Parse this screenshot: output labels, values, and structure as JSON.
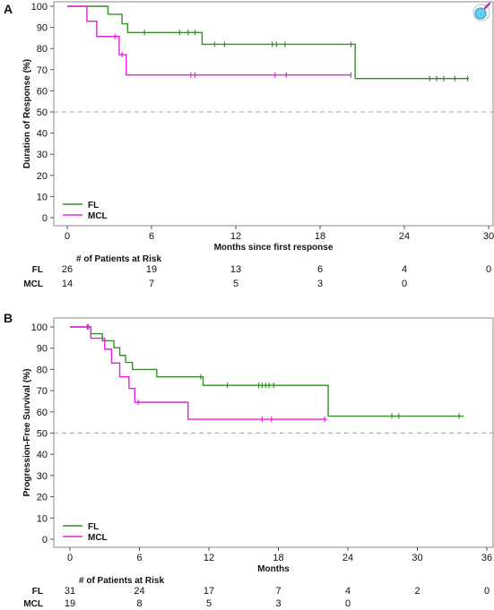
{
  "chart_data": [
    {
      "panel": "A",
      "type": "line",
      "xlabel": "Months since first response",
      "ylabel": "Duration of Response (%)",
      "xlim": [
        0,
        30
      ],
      "ylim": [
        0,
        100
      ],
      "xticks": [
        0,
        6,
        12,
        18,
        24,
        30
      ],
      "yticks": [
        0,
        10,
        20,
        30,
        40,
        50,
        60,
        70,
        80,
        90,
        100
      ],
      "reference_line_y": 50,
      "legend_position": "bottom-left",
      "series": [
        {
          "name": "FL",
          "color": "#3a8a2e",
          "steps": [
            [
              0,
              100
            ],
            [
              2.9,
              96.2
            ],
            [
              3.9,
              91.7
            ],
            [
              4.3,
              87.6
            ],
            [
              9.6,
              82.0
            ],
            [
              20.5,
              65.8
            ],
            [
              28.6,
              65.8
            ]
          ],
          "censored": [
            [
              5.5,
              87.6
            ],
            [
              8.0,
              87.6
            ],
            [
              8.6,
              87.6
            ],
            [
              9.1,
              87.6
            ],
            [
              10.5,
              82.0
            ],
            [
              11.2,
              82.0
            ],
            [
              14.6,
              82.0
            ],
            [
              14.9,
              82.0
            ],
            [
              15.5,
              82.0
            ],
            [
              20.2,
              82.0
            ],
            [
              25.8,
              65.8
            ],
            [
              26.3,
              65.8
            ],
            [
              26.8,
              65.8
            ],
            [
              27.6,
              65.8
            ],
            [
              28.5,
              65.8
            ]
          ]
        },
        {
          "name": "MCL",
          "color": "#e820e0",
          "steps": [
            [
              0,
              100
            ],
            [
              1.4,
              92.9
            ],
            [
              2.1,
              85.7
            ],
            [
              3.7,
              77.1
            ],
            [
              4.2,
              67.5
            ],
            [
              20.2,
              67.5
            ]
          ],
          "censored": [
            [
              3.4,
              85.7
            ],
            [
              3.9,
              77.1
            ],
            [
              8.8,
              67.5
            ],
            [
              9.1,
              67.5
            ],
            [
              14.8,
              67.5
            ],
            [
              15.6,
              67.5
            ],
            [
              20.2,
              67.5
            ]
          ]
        }
      ],
      "risk_table": {
        "heading": "# of Patients at Risk",
        "times": [
          0,
          6,
          12,
          18,
          24,
          30
        ],
        "rows": [
          {
            "label": "FL",
            "values": [
              "26",
              "19",
              "13",
              "6",
              "4",
              "0"
            ]
          },
          {
            "label": "MCL",
            "values": [
              "14",
              "7",
              "5",
              "3",
              "0"
            ]
          }
        ]
      }
    },
    {
      "panel": "B",
      "type": "line",
      "xlabel": "Months",
      "ylabel": "Progression-Free Survival (%)",
      "xlim": [
        0,
        36
      ],
      "ylim": [
        0,
        100
      ],
      "xticks": [
        0,
        6,
        12,
        18,
        24,
        30,
        36
      ],
      "yticks": [
        0,
        10,
        20,
        30,
        40,
        50,
        60,
        70,
        80,
        90,
        100
      ],
      "reference_line_y": 50,
      "legend_position": "bottom-left",
      "series": [
        {
          "name": "FL",
          "color": "#3a8a2e",
          "steps": [
            [
              0,
              100
            ],
            [
              1.8,
              96.8
            ],
            [
              2.8,
              93.5
            ],
            [
              3.8,
              90.2
            ],
            [
              4.3,
              86.6
            ],
            [
              4.8,
              83.3
            ],
            [
              5.4,
              80.0
            ],
            [
              7.5,
              76.5
            ],
            [
              11.5,
              72.5
            ],
            [
              22.3,
              58.0
            ],
            [
              34.0,
              58.0
            ]
          ],
          "censored": [
            [
              1.5,
              100
            ],
            [
              11.3,
              76.5
            ],
            [
              13.6,
              72.5
            ],
            [
              16.3,
              72.5
            ],
            [
              16.6,
              72.5
            ],
            [
              16.9,
              72.5
            ],
            [
              17.2,
              72.5
            ],
            [
              17.6,
              72.5
            ],
            [
              27.8,
              58.0
            ],
            [
              28.4,
              58.0
            ],
            [
              33.6,
              58.0
            ]
          ]
        },
        {
          "name": "MCL",
          "color": "#e820e0",
          "steps": [
            [
              0,
              100
            ],
            [
              1.8,
              94.7
            ],
            [
              3.0,
              89.5
            ],
            [
              3.6,
              83.0
            ],
            [
              4.3,
              76.5
            ],
            [
              5.1,
              71.0
            ],
            [
              5.6,
              64.5
            ],
            [
              10.2,
              56.5
            ],
            [
              22.2,
              56.5
            ]
          ],
          "censored": [
            [
              1.6,
              100
            ],
            [
              5.9,
              64.5
            ],
            [
              16.6,
              56.5
            ],
            [
              17.4,
              56.5
            ],
            [
              22.0,
              56.5
            ]
          ]
        }
      ],
      "risk_table": {
        "heading": "# of Patients at Risk",
        "times": [
          0,
          6,
          12,
          18,
          24,
          30,
          36
        ],
        "rows": [
          {
            "label": "FL",
            "values": [
              "31",
              "24",
              "17",
              "7",
              "4",
              "2",
              "0"
            ]
          },
          {
            "label": "MCL",
            "values": [
              "19",
              "8",
              "5",
              "3",
              "0"
            ]
          }
        ]
      }
    }
  ],
  "icons": {
    "corner": "magnifier-icon"
  }
}
